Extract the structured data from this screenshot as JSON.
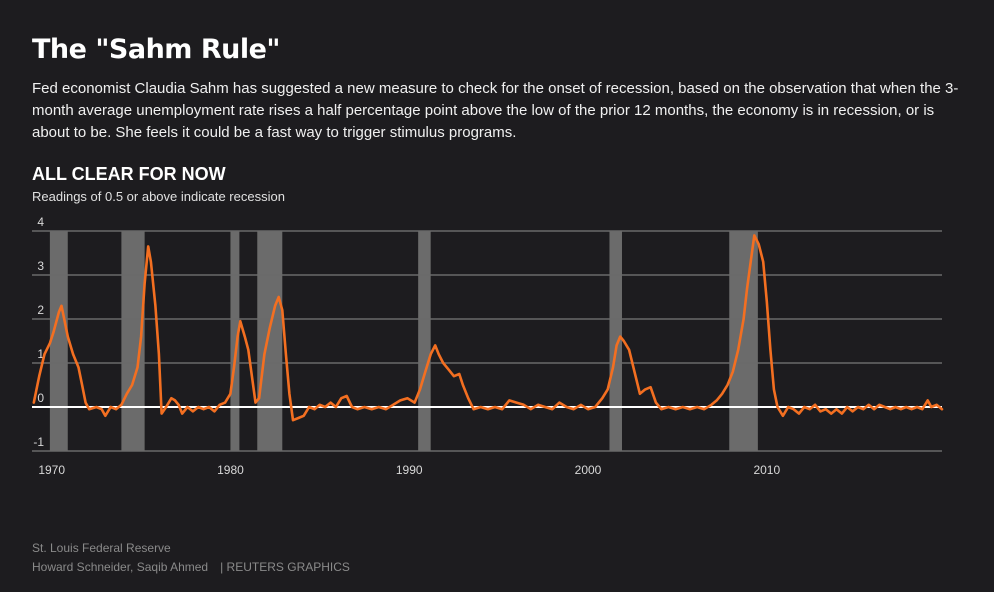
{
  "title": "The \"Sahm Rule\"",
  "description": "Fed economist Claudia Sahm has suggested a new measure to check for the onset of recession, based on the observation that when the 3-month average unemployment rate rises a half percentage point above the low of the prior 12 months, the economy is in recession, or is about to be. She feels it could be a fast way to trigger stimulus programs.",
  "subhead": "ALL CLEAR FOR NOW",
  "subtitle": "Readings of 0.5 or above indicate recession",
  "source": "St. Louis Federal Reserve",
  "authors": "Howard Schneider, Saqib Ahmed",
  "agency": "| REUTERS GRAPHICS",
  "colors": {
    "background": "#1d1c1f",
    "line": "#f36f21",
    "recession": "#6b6b6b",
    "zero_line": "#ffffff",
    "grid": "#6a6a6a"
  },
  "chart_data": {
    "type": "line",
    "title": "ALL CLEAR FOR NOW",
    "xlim": [
      1968.9,
      2019.8
    ],
    "ylim": [
      -1,
      4
    ],
    "yticks": [
      -1,
      0,
      1,
      2,
      3,
      4
    ],
    "xticks": [
      1970,
      1980,
      1990,
      2000,
      2010
    ],
    "recessions": [
      [
        1969.9,
        1970.9
      ],
      [
        1973.9,
        1975.2
      ],
      [
        1980.0,
        1980.5
      ],
      [
        1981.5,
        1982.9
      ],
      [
        1990.5,
        1991.2
      ],
      [
        2001.2,
        2001.9
      ],
      [
        2007.9,
        2009.5
      ]
    ],
    "series": [
      {
        "values": [
          [
            1969.0,
            0.1
          ],
          [
            1969.3,
            0.7
          ],
          [
            1969.6,
            1.2
          ],
          [
            1969.9,
            1.45
          ],
          [
            1970.1,
            1.7
          ],
          [
            1970.4,
            2.15
          ],
          [
            1970.55,
            2.3
          ],
          [
            1970.7,
            2.0
          ],
          [
            1970.9,
            1.6
          ],
          [
            1971.2,
            1.2
          ],
          [
            1971.5,
            0.9
          ],
          [
            1971.7,
            0.5
          ],
          [
            1971.9,
            0.1
          ],
          [
            1972.1,
            -0.05
          ],
          [
            1972.5,
            0.0
          ],
          [
            1972.8,
            -0.05
          ],
          [
            1973.0,
            -0.2
          ],
          [
            1973.3,
            0.0
          ],
          [
            1973.6,
            -0.05
          ],
          [
            1973.9,
            0.05
          ],
          [
            1974.2,
            0.3
          ],
          [
            1974.5,
            0.5
          ],
          [
            1974.8,
            0.9
          ],
          [
            1975.0,
            1.6
          ],
          [
            1975.2,
            2.8
          ],
          [
            1975.4,
            3.65
          ],
          [
            1975.55,
            3.3
          ],
          [
            1975.8,
            2.3
          ],
          [
            1976.0,
            1.2
          ],
          [
            1976.15,
            -0.15
          ],
          [
            1976.4,
            0.0
          ],
          [
            1976.7,
            0.2
          ],
          [
            1976.9,
            0.15
          ],
          [
            1977.1,
            0.05
          ],
          [
            1977.3,
            -0.15
          ],
          [
            1977.6,
            0.0
          ],
          [
            1977.9,
            -0.1
          ],
          [
            1978.2,
            0.0
          ],
          [
            1978.5,
            -0.05
          ],
          [
            1978.8,
            0.0
          ],
          [
            1979.1,
            -0.1
          ],
          [
            1979.4,
            0.05
          ],
          [
            1979.7,
            0.1
          ],
          [
            1980.0,
            0.3
          ],
          [
            1980.2,
            0.9
          ],
          [
            1980.4,
            1.6
          ],
          [
            1980.55,
            1.95
          ],
          [
            1980.8,
            1.6
          ],
          [
            1981.0,
            1.3
          ],
          [
            1981.2,
            0.7
          ],
          [
            1981.4,
            0.1
          ],
          [
            1981.6,
            0.2
          ],
          [
            1981.9,
            1.2
          ],
          [
            1982.2,
            1.8
          ],
          [
            1982.5,
            2.3
          ],
          [
            1982.7,
            2.5
          ],
          [
            1982.9,
            2.2
          ],
          [
            1983.1,
            1.2
          ],
          [
            1983.3,
            0.3
          ],
          [
            1983.5,
            -0.3
          ],
          [
            1983.8,
            -0.25
          ],
          [
            1984.1,
            -0.2
          ],
          [
            1984.4,
            0.0
          ],
          [
            1984.7,
            -0.05
          ],
          [
            1985.0,
            0.05
          ],
          [
            1985.3,
            0.0
          ],
          [
            1985.6,
            0.1
          ],
          [
            1985.9,
            0.0
          ],
          [
            1986.2,
            0.2
          ],
          [
            1986.5,
            0.25
          ],
          [
            1986.8,
            0.0
          ],
          [
            1987.1,
            -0.05
          ],
          [
            1987.5,
            0.0
          ],
          [
            1987.9,
            -0.05
          ],
          [
            1988.3,
            0.0
          ],
          [
            1988.7,
            -0.05
          ],
          [
            1989.1,
            0.05
          ],
          [
            1989.5,
            0.15
          ],
          [
            1989.9,
            0.2
          ],
          [
            1990.3,
            0.1
          ],
          [
            1990.6,
            0.4
          ],
          [
            1990.9,
            0.8
          ],
          [
            1991.2,
            1.2
          ],
          [
            1991.45,
            1.4
          ],
          [
            1991.65,
            1.2
          ],
          [
            1991.9,
            1.0
          ],
          [
            1992.2,
            0.85
          ],
          [
            1992.5,
            0.7
          ],
          [
            1992.8,
            0.75
          ],
          [
            1993.0,
            0.5
          ],
          [
            1993.3,
            0.2
          ],
          [
            1993.6,
            -0.05
          ],
          [
            1994.0,
            0.0
          ],
          [
            1994.4,
            -0.05
          ],
          [
            1994.8,
            0.0
          ],
          [
            1995.2,
            -0.05
          ],
          [
            1995.6,
            0.15
          ],
          [
            1996.0,
            0.1
          ],
          [
            1996.4,
            0.05
          ],
          [
            1996.8,
            -0.05
          ],
          [
            1997.2,
            0.05
          ],
          [
            1997.6,
            0.0
          ],
          [
            1998.0,
            -0.05
          ],
          [
            1998.4,
            0.1
          ],
          [
            1998.8,
            0.0
          ],
          [
            1999.2,
            -0.05
          ],
          [
            1999.6,
            0.05
          ],
          [
            2000.0,
            -0.05
          ],
          [
            2000.4,
            0.0
          ],
          [
            2000.8,
            0.2
          ],
          [
            2001.1,
            0.4
          ],
          [
            2001.4,
            0.9
          ],
          [
            2001.6,
            1.4
          ],
          [
            2001.8,
            1.6
          ],
          [
            2002.0,
            1.5
          ],
          [
            2002.3,
            1.3
          ],
          [
            2002.6,
            0.8
          ],
          [
            2002.9,
            0.3
          ],
          [
            2003.2,
            0.4
          ],
          [
            2003.5,
            0.45
          ],
          [
            2003.8,
            0.1
          ],
          [
            2004.1,
            -0.05
          ],
          [
            2004.5,
            0.0
          ],
          [
            2004.9,
            -0.05
          ],
          [
            2005.3,
            0.0
          ],
          [
            2005.7,
            -0.05
          ],
          [
            2006.1,
            0.0
          ],
          [
            2006.5,
            -0.05
          ],
          [
            2006.9,
            0.05
          ],
          [
            2007.2,
            0.15
          ],
          [
            2007.5,
            0.3
          ],
          [
            2007.8,
            0.5
          ],
          [
            2008.1,
            0.8
          ],
          [
            2008.4,
            1.3
          ],
          [
            2008.7,
            2.0
          ],
          [
            2008.9,
            2.7
          ],
          [
            2009.1,
            3.3
          ],
          [
            2009.3,
            3.9
          ],
          [
            2009.55,
            3.7
          ],
          [
            2009.8,
            3.3
          ],
          [
            2010.0,
            2.4
          ],
          [
            2010.2,
            1.3
          ],
          [
            2010.4,
            0.4
          ],
          [
            2010.6,
            0.0
          ],
          [
            2010.9,
            -0.2
          ],
          [
            2011.2,
            0.0
          ],
          [
            2011.5,
            -0.05
          ],
          [
            2011.8,
            -0.15
          ],
          [
            2012.1,
            0.0
          ],
          [
            2012.4,
            -0.05
          ],
          [
            2012.7,
            0.05
          ],
          [
            2013.0,
            -0.1
          ],
          [
            2013.3,
            -0.05
          ],
          [
            2013.6,
            -0.15
          ],
          [
            2013.9,
            -0.05
          ],
          [
            2014.2,
            -0.15
          ],
          [
            2014.5,
            0.0
          ],
          [
            2014.8,
            -0.1
          ],
          [
            2015.1,
            0.0
          ],
          [
            2015.4,
            -0.05
          ],
          [
            2015.7,
            0.05
          ],
          [
            2016.0,
            -0.05
          ],
          [
            2016.3,
            0.05
          ],
          [
            2016.6,
            0.0
          ],
          [
            2016.9,
            -0.05
          ],
          [
            2017.2,
            0.0
          ],
          [
            2017.5,
            -0.05
          ],
          [
            2017.8,
            0.0
          ],
          [
            2018.1,
            -0.05
          ],
          [
            2018.4,
            0.0
          ],
          [
            2018.7,
            -0.05
          ],
          [
            2019.0,
            0.15
          ],
          [
            2019.2,
            0.0
          ],
          [
            2019.5,
            0.05
          ],
          [
            2019.8,
            -0.05
          ]
        ]
      }
    ]
  }
}
